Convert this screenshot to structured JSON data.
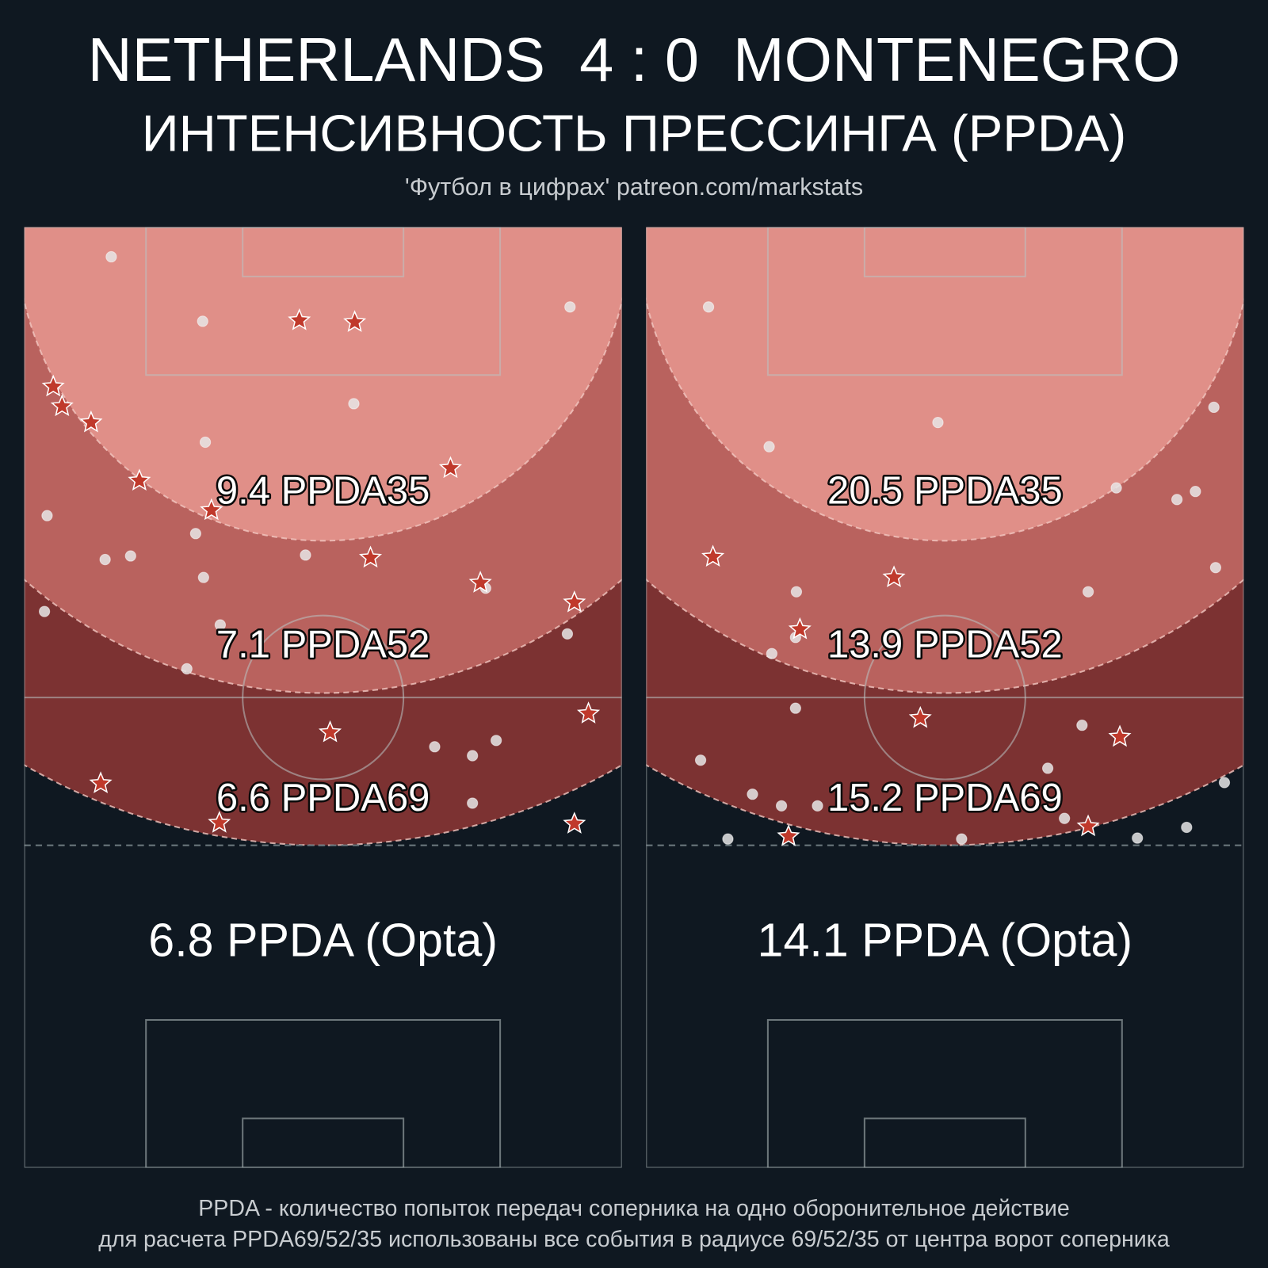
{
  "header": {
    "title": "NETHERLANDS  4 : 0  MONTENEGRO",
    "subtitle": "ИНТЕНСИВНОСТЬ ПРЕССИНГА (PPDA)",
    "credit": "'Футбол в цифрах' patreon.com/markstats"
  },
  "pitch": {
    "width_m": 68,
    "length_m": 105,
    "radii": [
      69,
      52,
      35
    ],
    "zone_colors": [
      "#7c3232",
      "#b9625e",
      "#e08f88"
    ]
  },
  "panels": [
    {
      "zone_labels": [
        "6.6 PPDA69",
        "7.1 PPDA52",
        "9.4 PPDA35"
      ],
      "opta": "6.8 PPDA (Opta)",
      "dots": [
        [
          9.9,
          3.3
        ],
        [
          20.3,
          10.5
        ],
        [
          37.5,
          19.7
        ],
        [
          20.6,
          24.0
        ],
        [
          2.6,
          32.2
        ],
        [
          19.5,
          34.2
        ],
        [
          9.2,
          37.1
        ],
        [
          12.1,
          36.7
        ],
        [
          32.0,
          36.6
        ],
        [
          20.4,
          39.1
        ],
        [
          2.3,
          42.9
        ],
        [
          52.5,
          40.3
        ],
        [
          22.3,
          44.4
        ],
        [
          61.8,
          45.4
        ],
        [
          18.5,
          49.3
        ],
        [
          46.7,
          58.0
        ],
        [
          51.0,
          59.0
        ],
        [
          53.7,
          57.3
        ],
        [
          51.0,
          64.3
        ],
        [
          62.1,
          8.9
        ]
      ],
      "stars": [
        [
          31.3,
          10.4
        ],
        [
          37.6,
          10.6
        ],
        [
          3.3,
          17.8
        ],
        [
          4.3,
          20.0
        ],
        [
          7.6,
          21.8
        ],
        [
          13.1,
          28.3
        ],
        [
          48.5,
          26.9
        ],
        [
          21.3,
          31.6
        ],
        [
          39.4,
          36.9
        ],
        [
          51.9,
          39.7
        ],
        [
          62.6,
          41.9
        ],
        [
          34.8,
          56.4
        ],
        [
          64.2,
          54.3
        ],
        [
          8.7,
          62.1
        ],
        [
          22.2,
          66.5
        ],
        [
          62.6,
          66.6
        ]
      ]
    },
    {
      "zone_labels": [
        "15.2 PPDA69",
        "13.9 PPDA52",
        "20.5 PPDA35"
      ],
      "opta": "14.1 PPDA (Opta)",
      "dots": [
        [
          7.1,
          8.9
        ],
        [
          14.0,
          24.5
        ],
        [
          33.2,
          21.8
        ],
        [
          64.6,
          20.1
        ],
        [
          53.5,
          29.1
        ],
        [
          60.4,
          30.4
        ],
        [
          62.5,
          29.5
        ],
        [
          64.8,
          38.0
        ],
        [
          17.1,
          40.7
        ],
        [
          50.3,
          40.7
        ],
        [
          17.0,
          45.8
        ],
        [
          14.3,
          47.6
        ],
        [
          17.0,
          53.7
        ],
        [
          6.2,
          59.5
        ],
        [
          12.1,
          63.3
        ],
        [
          15.4,
          64.6
        ],
        [
          19.5,
          64.6
        ],
        [
          45.7,
          60.4
        ],
        [
          49.6,
          55.6
        ],
        [
          47.6,
          66.0
        ],
        [
          35.9,
          68.3
        ],
        [
          9.3,
          68.3
        ],
        [
          55.9,
          68.2
        ],
        [
          61.5,
          67.0
        ],
        [
          65.8,
          62.0
        ]
      ],
      "stars": [
        [
          7.6,
          36.8
        ],
        [
          28.2,
          39.1
        ],
        [
          17.5,
          44.9
        ],
        [
          31.2,
          54.8
        ],
        [
          53.9,
          56.9
        ],
        [
          16.2,
          68.0
        ],
        [
          50.3,
          66.9
        ]
      ]
    }
  ],
  "footer": [
    "PPDA - количество попыток передач соперника на одно оборонительное действие",
    "для расчета PPDA69/52/35 использованы все события в радиусе 69/52/35 от центра ворот соперника"
  ]
}
